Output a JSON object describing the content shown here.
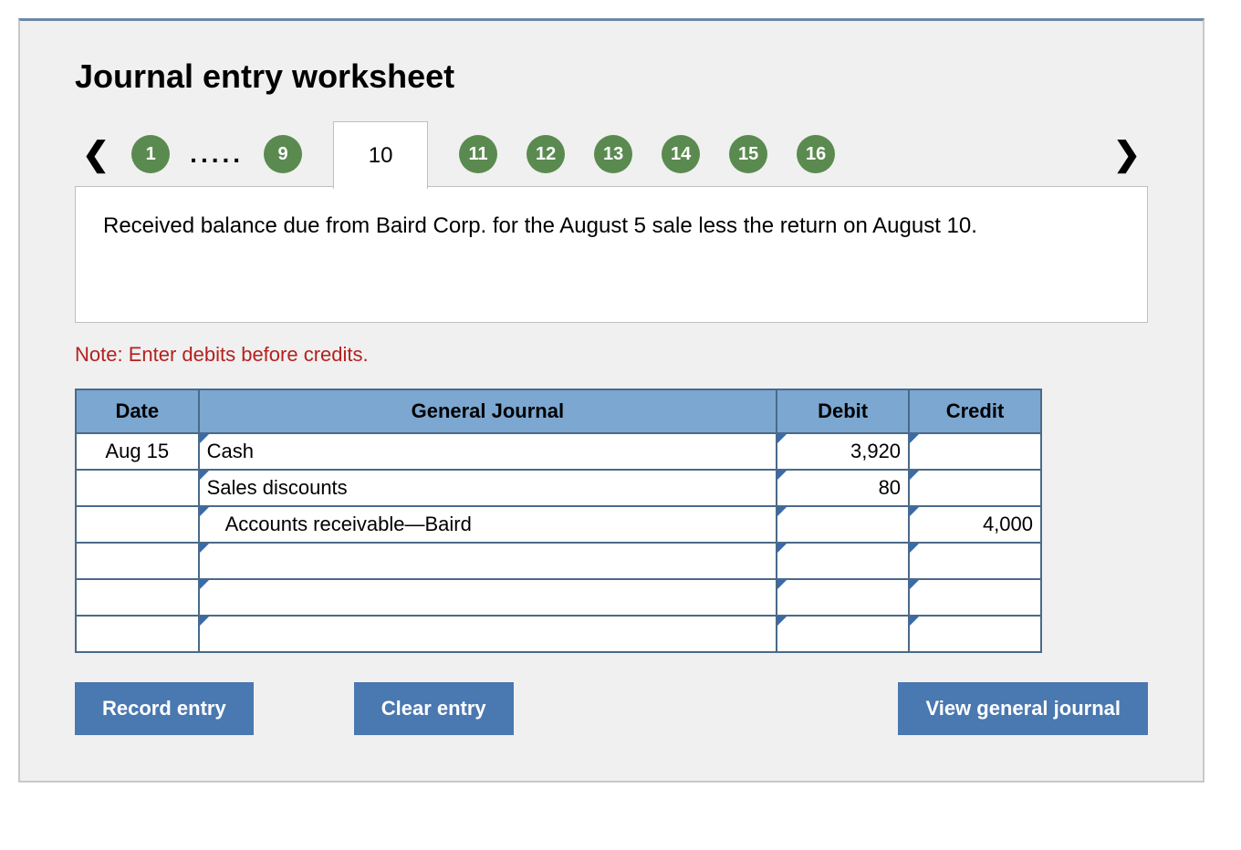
{
  "title": "Journal entry worksheet",
  "stepper": {
    "items": [
      "1",
      "9",
      "10",
      "11",
      "12",
      "13",
      "14",
      "15",
      "16"
    ],
    "active_index": 2,
    "dots_after_index": 0,
    "ellipsis": "....."
  },
  "prompt": "Received balance due from Baird Corp. for the August 5 sale less the return on August 10.",
  "note": "Note: Enter debits before credits.",
  "table": {
    "columns": [
      "Date",
      "General Journal",
      "Debit",
      "Credit"
    ],
    "rows": [
      {
        "date": "Aug 15",
        "journal": "Cash",
        "indent": 0,
        "debit": "3,920",
        "credit": ""
      },
      {
        "date": "",
        "journal": "Sales discounts",
        "indent": 0,
        "debit": "80",
        "credit": ""
      },
      {
        "date": "",
        "journal": "Accounts receivable—Baird",
        "indent": 1,
        "debit": "",
        "credit": "4,000"
      },
      {
        "date": "",
        "journal": "",
        "indent": 0,
        "debit": "",
        "credit": ""
      },
      {
        "date": "",
        "journal": "",
        "indent": 0,
        "debit": "",
        "credit": ""
      },
      {
        "date": "",
        "journal": "",
        "indent": 0,
        "debit": "",
        "credit": ""
      }
    ]
  },
  "buttons": {
    "record": "Record entry",
    "clear": "Clear entry",
    "view": "View general journal"
  },
  "colors": {
    "step_circle": "#5a8a4f",
    "header_bg": "#7ba7d0",
    "table_border": "#4a6a8a",
    "button_bg": "#4a78b0",
    "note_color": "#b52020",
    "container_bg": "#f0f0f0",
    "top_border": "#6b88a8"
  }
}
